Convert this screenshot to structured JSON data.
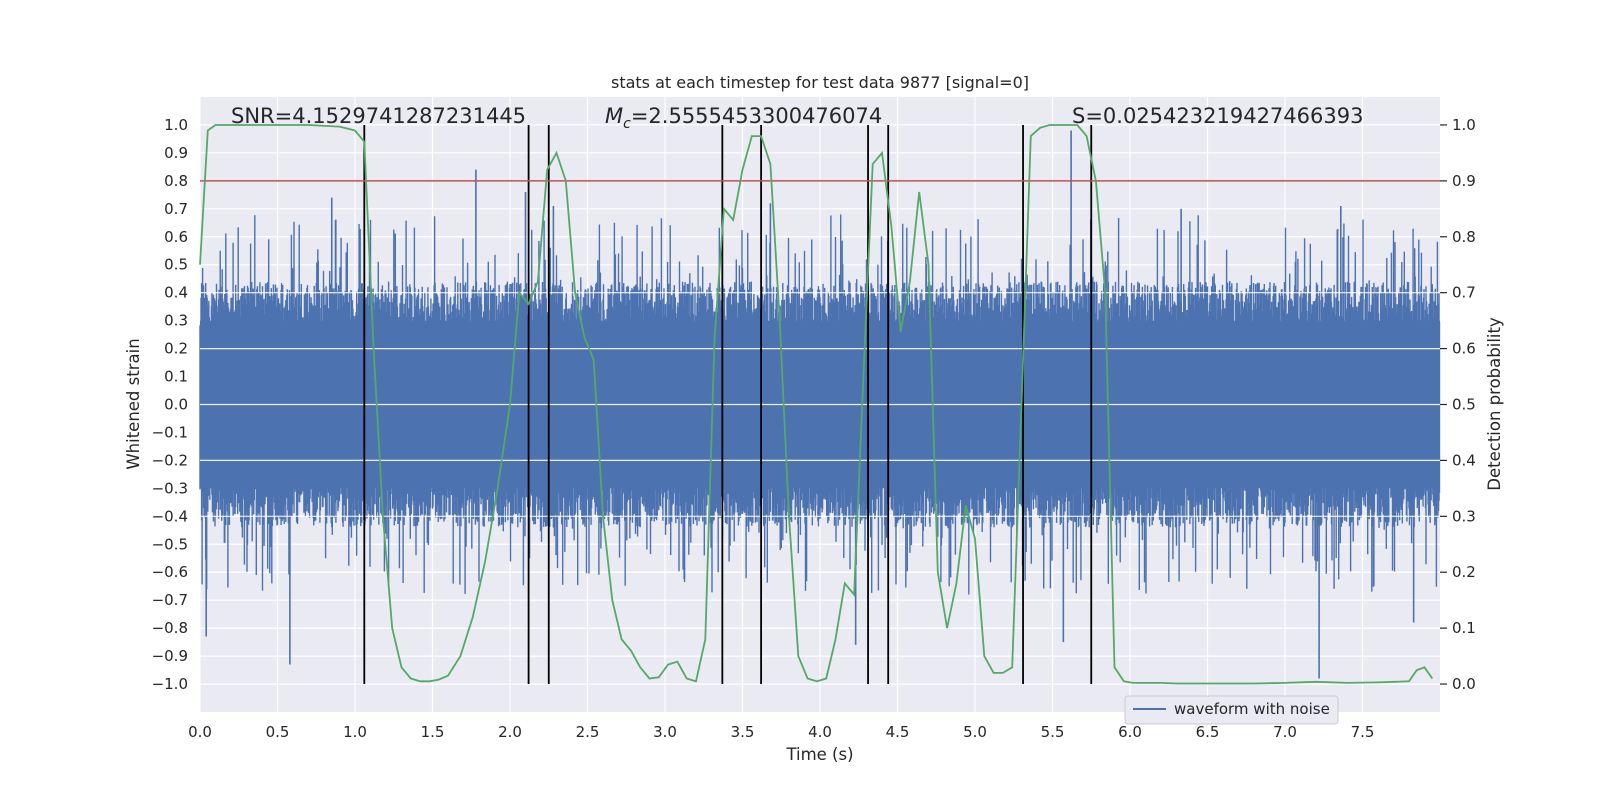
{
  "chart_data": {
    "type": "line",
    "title": "stats at each timestep for test data 9877 [signal=0]",
    "xlabel": "Time (s)",
    "ylabel": "Whitened strain",
    "y2label": "Detection probability",
    "xlim": [
      0,
      8
    ],
    "ylim": [
      -1.1,
      1.1
    ],
    "y2lim": [
      -0.05,
      1.05
    ],
    "xticks": [
      "0.0",
      "0.5",
      "1.0",
      "1.5",
      "2.0",
      "2.5",
      "3.0",
      "3.5",
      "4.0",
      "4.5",
      "5.0",
      "5.5",
      "6.0",
      "6.5",
      "7.0",
      "7.5"
    ],
    "yticks": [
      "1.0",
      "0.9",
      "0.8",
      "0.7",
      "0.6",
      "0.5",
      "0.4",
      "0.3",
      "0.2",
      "0.1",
      "0.0",
      "-0.1",
      "-0.2",
      "-0.3",
      "-0.4",
      "-0.5",
      "-0.6",
      "-0.7",
      "-0.8",
      "-0.9",
      "-1.0"
    ],
    "y2ticks": [
      "1.0",
      "0.9",
      "0.8",
      "0.7",
      "0.6",
      "0.5",
      "0.4",
      "0.3",
      "0.2",
      "0.1",
      "0.0"
    ],
    "annotations": {
      "snr": "SNR=4.1529741287231445",
      "mc_symbol": "M",
      "mc_sub": "c",
      "mc_value": "=2.5555453300476074",
      "s": "S=0.025423219427466393"
    },
    "threshold": 0.9,
    "threshold_color": "#c44e52",
    "noise_color": "#4c72b0",
    "prob_color": "#55a868",
    "legend": [
      "waveform with noise"
    ],
    "legend_position": "bottom-right",
    "noise_spikes": [
      {
        "t": 0.04,
        "v": -0.83
      },
      {
        "t": 0.58,
        "v": -0.93
      },
      {
        "t": 0.85,
        "v": 0.74
      },
      {
        "t": 1.78,
        "v": 0.84
      },
      {
        "t": 2.1,
        "v": 0.76
      },
      {
        "t": 3.68,
        "v": 0.72
      },
      {
        "t": 4.23,
        "v": -0.86
      },
      {
        "t": 5.62,
        "v": 0.98
      },
      {
        "t": 5.57,
        "v": -0.85
      },
      {
        "t": 7.22,
        "v": -0.98
      },
      {
        "t": 7.36,
        "v": 0.71
      },
      {
        "t": 7.83,
        "v": -0.78
      },
      {
        "t": 2.28,
        "v": 0.71
      },
      {
        "t": 6.33,
        "v": 0.7
      }
    ],
    "detection_probability": {
      "t": [
        0.0,
        0.05,
        0.1,
        0.15,
        0.3,
        0.5,
        0.7,
        0.9,
        1.0,
        1.06,
        1.12,
        1.18,
        1.24,
        1.3,
        1.36,
        1.42,
        1.48,
        1.54,
        1.6,
        1.68,
        1.76,
        1.84,
        1.92,
        2.0,
        2.06,
        2.12,
        2.18,
        2.24,
        2.3,
        2.36,
        2.42,
        2.48,
        2.54,
        2.6,
        2.66,
        2.72,
        2.78,
        2.84,
        2.9,
        2.96,
        3.02,
        3.08,
        3.14,
        3.2,
        3.26,
        3.32,
        3.38,
        3.44,
        3.5,
        3.56,
        3.62,
        3.68,
        3.74,
        3.8,
        3.86,
        3.92,
        3.98,
        4.04,
        4.1,
        4.16,
        4.22,
        4.28,
        4.34,
        4.4,
        4.46,
        4.52,
        4.58,
        4.64,
        4.7,
        4.76,
        4.82,
        4.88,
        4.94,
        5.0,
        5.06,
        5.12,
        5.18,
        5.24,
        5.3,
        5.36,
        5.42,
        5.48,
        5.54,
        5.6,
        5.66,
        5.72,
        5.78,
        5.84,
        5.9,
        5.96,
        6.02,
        6.1,
        6.2,
        6.3,
        6.5,
        6.8,
        7.0,
        7.2,
        7.4,
        7.6,
        7.8,
        7.85,
        7.9,
        7.95
      ],
      "p": [
        0.75,
        0.99,
        1.0,
        1.0,
        1.0,
        1.0,
        1.0,
        0.997,
        0.99,
        0.97,
        0.6,
        0.3,
        0.1,
        0.03,
        0.01,
        0.005,
        0.005,
        0.008,
        0.015,
        0.05,
        0.12,
        0.22,
        0.35,
        0.5,
        0.7,
        0.68,
        0.72,
        0.92,
        0.95,
        0.9,
        0.7,
        0.62,
        0.58,
        0.3,
        0.15,
        0.08,
        0.06,
        0.03,
        0.01,
        0.012,
        0.035,
        0.04,
        0.01,
        0.005,
        0.08,
        0.62,
        0.85,
        0.83,
        0.92,
        0.98,
        0.98,
        0.93,
        0.65,
        0.3,
        0.05,
        0.01,
        0.005,
        0.01,
        0.08,
        0.18,
        0.16,
        0.55,
        0.93,
        0.95,
        0.82,
        0.63,
        0.72,
        0.88,
        0.75,
        0.2,
        0.1,
        0.18,
        0.32,
        0.26,
        0.05,
        0.02,
        0.02,
        0.03,
        0.5,
        0.98,
        0.995,
        1.0,
        1.0,
        1.0,
        1.0,
        0.98,
        0.9,
        0.7,
        0.03,
        0.005,
        0.002,
        0.002,
        0.002,
        0.001,
        0.001,
        0.001,
        0.002,
        0.004,
        0.002,
        0.003,
        0.005,
        0.025,
        0.03,
        0.01
      ]
    },
    "event_lines_t": [
      1.06,
      2.12,
      2.25,
      3.37,
      3.62,
      4.31,
      4.44,
      5.31,
      5.75
    ]
  }
}
